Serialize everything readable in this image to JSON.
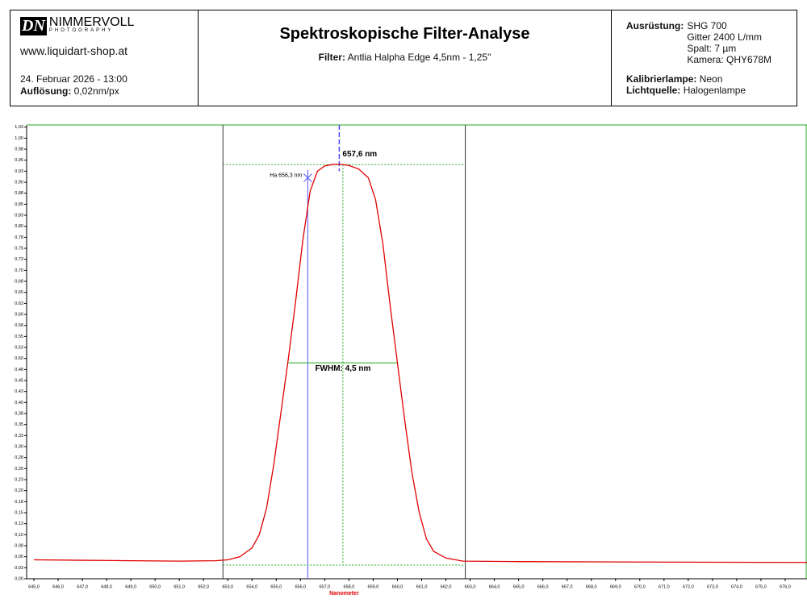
{
  "header": {
    "logo_mark": "DN",
    "logo_name": "NIMMERVOLL",
    "logo_sub": "PHOTOGRAPHY",
    "website": "www.liquidart-shop.at",
    "date": "24. Februar 2026 - 13:00",
    "resolution_label": "Auflösung:",
    "resolution_value": "0,02nm/px",
    "title": "Spektroskopische Filter-Analyse",
    "filter_label": "Filter:",
    "filter_value": "Antlia Halpha Edge 4,5nm - 1,25\"",
    "equipment_label": "Ausrüstung:",
    "equipment_lines": [
      "SHG 700",
      "Gitter 2400 L/mm",
      "Spalt: 7 µm",
      "Kamera: QHY678M"
    ],
    "lamp_label": "Kalibrierlampe:",
    "lamp_value": "Neon",
    "light_label": "Lichtquelle:",
    "light_value": "Halogenlampe"
  },
  "chart_data": {
    "type": "line",
    "x_label": "Nanometer",
    "x": [
      645,
      647,
      649,
      651,
      652.5,
      653,
      653.5,
      654,
      654.3,
      654.6,
      654.9,
      655.2,
      655.5,
      655.8,
      656.1,
      656.4,
      656.7,
      657.0,
      657.3,
      657.6,
      658.0,
      658.4,
      658.8,
      659.1,
      659.4,
      659.7,
      660.0,
      660.3,
      660.6,
      660.9,
      661.2,
      661.5,
      662.0,
      662.7,
      665,
      670,
      676.9
    ],
    "series": [
      {
        "color": "#e00000",
        "values": [
          0.043,
          0.042,
          0.041,
          0.04,
          0.041,
          0.043,
          0.05,
          0.07,
          0.1,
          0.16,
          0.26,
          0.38,
          0.5,
          0.63,
          0.77,
          0.88,
          0.925,
          0.937,
          0.94,
          0.941,
          0.938,
          0.93,
          0.91,
          0.86,
          0.76,
          0.62,
          0.49,
          0.36,
          0.24,
          0.15,
          0.09,
          0.062,
          0.047,
          0.04,
          0.039,
          0.038,
          0.037
        ]
      }
    ],
    "xlim": [
      644.7,
      676.9
    ],
    "ylim": [
      0,
      1.03
    ],
    "xticks": [
      {
        "value": 645,
        "label": "645,0"
      },
      {
        "value": 646,
        "label": "646,0"
      },
      {
        "value": 647,
        "label": "647,0"
      },
      {
        "value": 648,
        "label": "648,0"
      },
      {
        "value": 649,
        "label": "649,0"
      },
      {
        "value": 650,
        "label": "650,0"
      },
      {
        "value": 651,
        "label": "651,0"
      },
      {
        "value": 652,
        "label": "652,0"
      },
      {
        "value": 653,
        "label": "653,0"
      },
      {
        "value": 654,
        "label": "654,0"
      },
      {
        "value": 655,
        "label": "655,0"
      },
      {
        "value": 656,
        "label": "656,0"
      },
      {
        "value": 657,
        "label": "657,0"
      },
      {
        "value": 658,
        "label": "658,0"
      },
      {
        "value": 659,
        "label": "659,0"
      },
      {
        "value": 660,
        "label": "660,0"
      },
      {
        "value": 661,
        "label": "661,0"
      },
      {
        "value": 662,
        "label": "662,0"
      },
      {
        "value": 663,
        "label": "663,0"
      },
      {
        "value": 664,
        "label": "664,0"
      },
      {
        "value": 665,
        "label": "665,0"
      },
      {
        "value": 666,
        "label": "666,0"
      },
      {
        "value": 667,
        "label": "667,0"
      },
      {
        "value": 668,
        "label": "668,0"
      },
      {
        "value": 669,
        "label": "669,0"
      },
      {
        "value": 670,
        "label": "670,0"
      },
      {
        "value": 671,
        "label": "671,0"
      },
      {
        "value": 672,
        "label": "672,0"
      },
      {
        "value": 673,
        "label": "673,0"
      },
      {
        "value": 674,
        "label": "674,0"
      },
      {
        "value": 675,
        "label": "675,0"
      },
      {
        "value": 676,
        "label": "676,0"
      }
    ],
    "yticks": [
      {
        "value": 0,
        "label": "0,00"
      },
      {
        "value": 0.025,
        "label": "0,03"
      },
      {
        "value": 0.05,
        "label": "0,05"
      },
      {
        "value": 0.075,
        "label": "0,08"
      },
      {
        "value": 0.1,
        "label": "0,10"
      },
      {
        "value": 0.125,
        "label": "0,13"
      },
      {
        "value": 0.15,
        "label": "0,15"
      },
      {
        "value": 0.175,
        "label": "0,18"
      },
      {
        "value": 0.2,
        "label": "0,20"
      },
      {
        "value": 0.225,
        "label": "0,23"
      },
      {
        "value": 0.25,
        "label": "0,25"
      },
      {
        "value": 0.275,
        "label": "0,28"
      },
      {
        "value": 0.3,
        "label": "0,30"
      },
      {
        "value": 0.325,
        "label": "0,33"
      },
      {
        "value": 0.35,
        "label": "0,35"
      },
      {
        "value": 0.375,
        "label": "0,38"
      },
      {
        "value": 0.4,
        "label": "0,40"
      },
      {
        "value": 0.425,
        "label": "0,43"
      },
      {
        "value": 0.45,
        "label": "0,45"
      },
      {
        "value": 0.475,
        "label": "0,48"
      },
      {
        "value": 0.5,
        "label": "0,50"
      },
      {
        "value": 0.525,
        "label": "0,53"
      },
      {
        "value": 0.55,
        "label": "0,55"
      },
      {
        "value": 0.575,
        "label": "0,58"
      },
      {
        "value": 0.6,
        "label": "0,60"
      },
      {
        "value": 0.625,
        "label": "0,63"
      },
      {
        "value": 0.65,
        "label": "0,65"
      },
      {
        "value": 0.675,
        "label": "0,68"
      },
      {
        "value": 0.7,
        "label": "0,70"
      },
      {
        "value": 0.725,
        "label": "0,73"
      },
      {
        "value": 0.75,
        "label": "0,75"
      },
      {
        "value": 0.775,
        "label": "0,78"
      },
      {
        "value": 0.8,
        "label": "0,80"
      },
      {
        "value": 0.825,
        "label": "0,83"
      },
      {
        "value": 0.85,
        "label": "0,85"
      },
      {
        "value": 0.875,
        "label": "0,88"
      },
      {
        "value": 0.9,
        "label": "0,90"
      },
      {
        "value": 0.925,
        "label": "0,93"
      },
      {
        "value": 0.95,
        "label": "0,95"
      },
      {
        "value": 0.975,
        "label": "0,98"
      },
      {
        "value": 1.0,
        "label": "1,00"
      },
      {
        "value": 1.025,
        "label": "1,03"
      }
    ],
    "bounds": [
      652.8,
      662.8
    ],
    "peak": {
      "x": 657.6,
      "y": 0.94,
      "label": "657,6 nm"
    },
    "ha": {
      "x": 656.3,
      "y": 0.91,
      "label": "Ha 656,3 nm"
    },
    "fwhm": {
      "x": [
        655.5,
        660.0
      ],
      "y": 0.49,
      "label": "FWHM: 4,5 nm"
    }
  }
}
